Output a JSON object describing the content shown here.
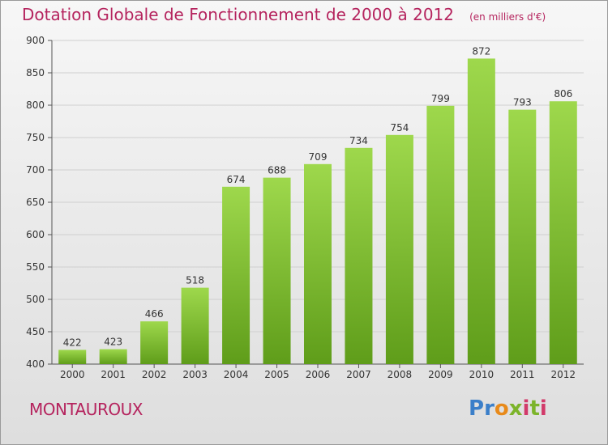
{
  "title": "Dotation Globale de Fonctionnement de 2000 à 2012",
  "unit_label": "(en milliers d'€)",
  "commune": "MONTAUROUX",
  "logo": {
    "text": "Proxiti",
    "colors": [
      "#3b7fc9",
      "#e88a1a",
      "#7cb42a",
      "#d23a6a"
    ]
  },
  "colors": {
    "bar_top": "#9ed84c",
    "bar_bottom": "#5f9d1a",
    "title": "#b5245e"
  },
  "chart_data": {
    "type": "bar",
    "title": "Dotation Globale de Fonctionnement de 2000 à 2012",
    "ylabel": "(en milliers d'€)",
    "xlabel": "",
    "categories": [
      "2000",
      "2001",
      "2002",
      "2003",
      "2004",
      "2005",
      "2006",
      "2007",
      "2008",
      "2009",
      "2010",
      "2011",
      "2012"
    ],
    "values": [
      422,
      423,
      466,
      518,
      674,
      688,
      709,
      734,
      754,
      799,
      872,
      793,
      806
    ],
    "ylim": [
      400,
      900
    ],
    "yticks": [
      400,
      450,
      500,
      550,
      600,
      650,
      700,
      750,
      800,
      850,
      900
    ],
    "grid": true,
    "data_labels": true
  }
}
